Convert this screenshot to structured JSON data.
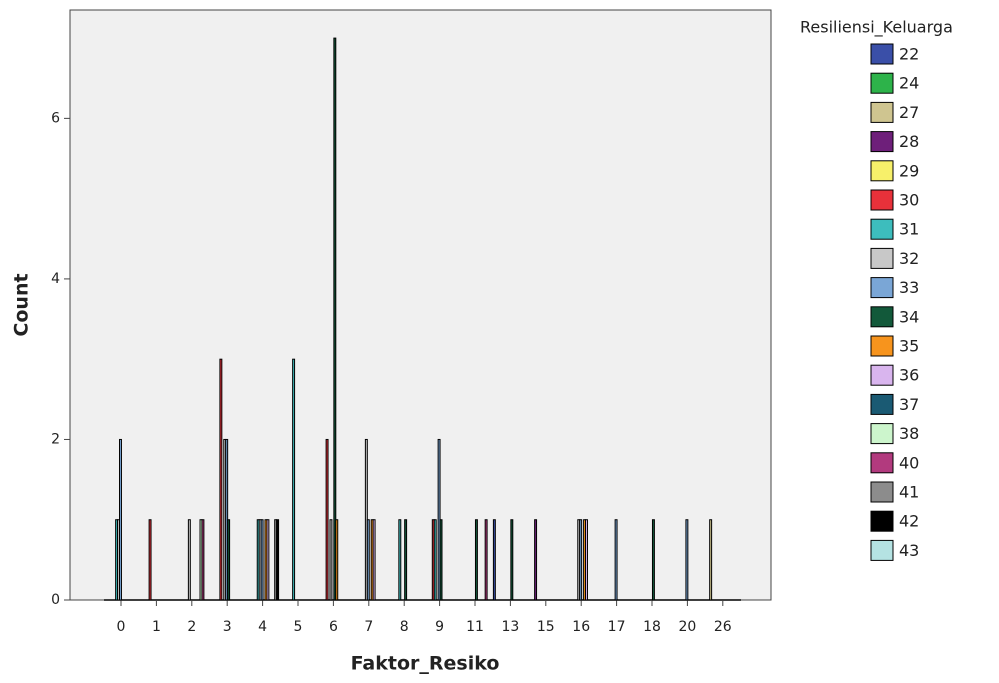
{
  "chart_data": {
    "type": "bar",
    "x_label": "Faktor_Resiko",
    "y_label": "Count",
    "legend_title": "Resiliensi_Keluarga",
    "categories": [
      "0",
      "1",
      "2",
      "3",
      "4",
      "5",
      "6",
      "7",
      "8",
      "9",
      "11",
      "13",
      "15",
      "16",
      "17",
      "18",
      "20",
      "26"
    ],
    "ylim": [
      0,
      7.35
    ],
    "yticks": [
      0,
      2,
      4,
      6
    ],
    "legend_position": "right",
    "series": [
      {
        "name": "22",
        "color": "#3a4fa8",
        "values": [
          null,
          null,
          null,
          null,
          null,
          null,
          null,
          null,
          null,
          null,
          null,
          1,
          null,
          null,
          null,
          null,
          null,
          null
        ]
      },
      {
        "name": "24",
        "color": "#2db34a",
        "values": [
          null,
          null,
          null,
          null,
          null,
          null,
          null,
          null,
          null,
          null,
          null,
          null,
          null,
          null,
          null,
          null,
          null,
          null
        ]
      },
      {
        "name": "27",
        "color": "#cfc590",
        "values": [
          null,
          null,
          null,
          null,
          null,
          null,
          null,
          null,
          null,
          null,
          null,
          null,
          null,
          null,
          null,
          null,
          null,
          1
        ]
      },
      {
        "name": "28",
        "color": "#6e1f7a",
        "values": [
          null,
          null,
          null,
          null,
          null,
          null,
          null,
          null,
          null,
          null,
          null,
          null,
          1,
          null,
          null,
          null,
          null,
          null
        ]
      },
      {
        "name": "29",
        "color": "#f7f06a",
        "values": [
          null,
          null,
          null,
          null,
          null,
          null,
          null,
          null,
          null,
          null,
          null,
          null,
          null,
          null,
          null,
          null,
          null,
          null
        ]
      },
      {
        "name": "30",
        "color": "#e8313a",
        "values": [
          null,
          1,
          null,
          3,
          null,
          null,
          2,
          null,
          null,
          1,
          null,
          null,
          null,
          null,
          null,
          null,
          null,
          null
        ]
      },
      {
        "name": "31",
        "color": "#3dbdbd",
        "values": [
          1,
          null,
          null,
          null,
          1,
          3,
          null,
          null,
          1,
          1,
          null,
          null,
          null,
          null,
          null,
          null,
          null,
          null
        ]
      },
      {
        "name": "32",
        "color": "#c8c8c8",
        "values": [
          1,
          null,
          1,
          2,
          1,
          null,
          1,
          2,
          null,
          null,
          null,
          null,
          null,
          1,
          null,
          null,
          null,
          null
        ]
      },
      {
        "name": "33",
        "color": "#7aa6d6",
        "values": [
          2,
          null,
          null,
          2,
          1,
          null,
          null,
          1,
          null,
          2,
          null,
          null,
          null,
          1,
          1,
          null,
          1,
          null
        ]
      },
      {
        "name": "34",
        "color": "#12593a",
        "values": [
          null,
          null,
          null,
          1,
          null,
          null,
          7,
          null,
          1,
          1,
          1,
          1,
          null,
          null,
          null,
          1,
          null,
          null
        ]
      },
      {
        "name": "35",
        "color": "#f7941d",
        "values": [
          null,
          null,
          null,
          null,
          1,
          null,
          1,
          1,
          null,
          null,
          null,
          null,
          null,
          1,
          null,
          null,
          null,
          null
        ]
      },
      {
        "name": "36",
        "color": "#d9b5ee",
        "values": [
          null,
          null,
          null,
          null,
          1,
          null,
          null,
          1,
          null,
          null,
          null,
          null,
          null,
          1,
          null,
          null,
          null,
          null
        ]
      },
      {
        "name": "37",
        "color": "#1a5a73",
        "values": [
          null,
          null,
          null,
          null,
          null,
          null,
          null,
          null,
          null,
          null,
          null,
          null,
          null,
          null,
          null,
          null,
          null,
          null
        ]
      },
      {
        "name": "38",
        "color": "#ccf5cc",
        "values": [
          null,
          null,
          1,
          null,
          null,
          null,
          null,
          null,
          null,
          null,
          null,
          null,
          null,
          null,
          null,
          null,
          null,
          null
        ]
      },
      {
        "name": "40",
        "color": "#b23a7e",
        "values": [
          null,
          null,
          1,
          null,
          null,
          null,
          null,
          null,
          null,
          null,
          1,
          null,
          null,
          null,
          null,
          null,
          null,
          null
        ]
      },
      {
        "name": "41",
        "color": "#8c8c8c",
        "values": [
          null,
          null,
          null,
          null,
          1,
          null,
          null,
          null,
          null,
          null,
          null,
          null,
          null,
          null,
          null,
          null,
          null,
          null
        ]
      },
      {
        "name": "42",
        "color": "#000000",
        "values": [
          null,
          null,
          null,
          null,
          1,
          null,
          null,
          null,
          null,
          null,
          null,
          null,
          null,
          null,
          null,
          null,
          null,
          null
        ]
      },
      {
        "name": "43",
        "color": "#b5e3e3",
        "values": [
          null,
          null,
          null,
          null,
          null,
          null,
          null,
          null,
          null,
          null,
          null,
          null,
          null,
          null,
          null,
          null,
          null,
          null
        ]
      }
    ]
  }
}
